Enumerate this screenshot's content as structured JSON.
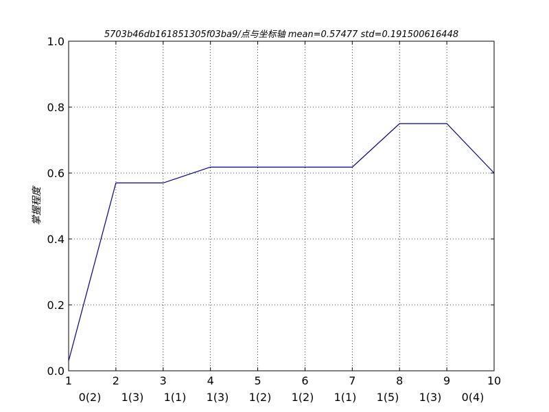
{
  "chart_data": {
    "type": "line",
    "title": "5703b46db161851305f03ba9/点与坐标轴 mean=0.57477 std=0.191500616448",
    "xlabel": "",
    "ylabel": "掌握程度",
    "x": [
      1,
      2,
      3,
      4,
      5,
      6,
      7,
      8,
      9,
      10
    ],
    "values": [
      0.03,
      0.57,
      0.57,
      0.618,
      0.618,
      0.618,
      0.618,
      0.75,
      0.75,
      0.6
    ],
    "xlim": [
      1,
      10
    ],
    "ylim": [
      0,
      1.0
    ],
    "xticks": [
      "1",
      "2",
      "3",
      "4",
      "5",
      "6",
      "7",
      "8",
      "9",
      "10"
    ],
    "yticks": [
      "0.0",
      "0.2",
      "0.4",
      "0.6",
      "0.8",
      "1.0"
    ],
    "category_labels": [
      "0(2)",
      "1(3)",
      "1(1)",
      "1(3)",
      "1(2)",
      "1(2)",
      "1(1)",
      "1(5)",
      "1(3)",
      "0(4)"
    ],
    "grid": true,
    "line_color": "#00008b"
  }
}
